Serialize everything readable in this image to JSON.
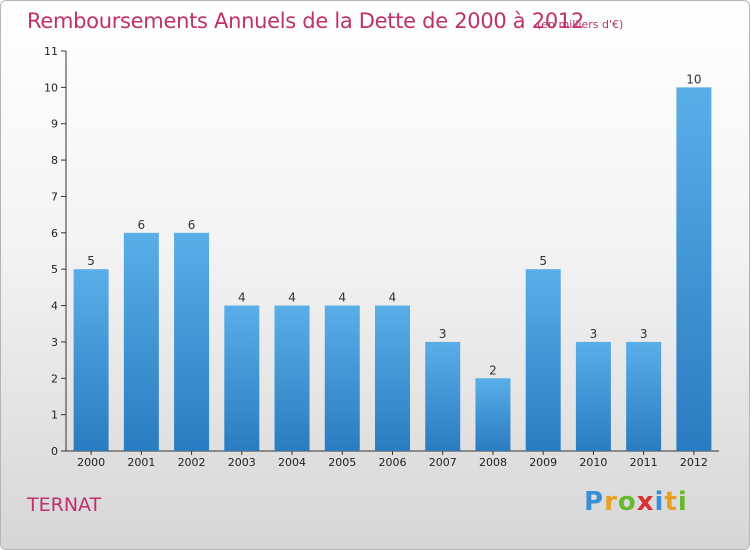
{
  "header": {
    "title": "Remboursements Annuels de la Dette de 2000 à 2012",
    "subtitle": "(en milliers d'€)"
  },
  "footer": {
    "commune": "TERNAT",
    "logo_letters": [
      "P",
      "r",
      "o",
      "x",
      "i",
      "t",
      "i"
    ],
    "logo_colors": [
      "#3a8fd4",
      "#e8a020",
      "#6ab82e",
      "#d93030",
      "#3a8fd4",
      "#e8a020",
      "#6ab82e"
    ]
  },
  "chart_data": {
    "type": "bar",
    "title": "Remboursements Annuels de la Dette de 2000 à 2012",
    "subtitle": "(en milliers d'€)",
    "categories": [
      "2000",
      "2001",
      "2002",
      "2003",
      "2004",
      "2005",
      "2006",
      "2007",
      "2008",
      "2009",
      "2010",
      "2011",
      "2012"
    ],
    "values": [
      5,
      6,
      6,
      4,
      4,
      4,
      4,
      3,
      2,
      5,
      3,
      3,
      10
    ],
    "data_labels": [
      "5",
      "6",
      "6",
      "4",
      "4",
      "4",
      "4",
      "3",
      "2",
      "5",
      "3",
      "3",
      "10"
    ],
    "yticks": [
      "0",
      "1",
      "2",
      "3",
      "4",
      "5",
      "6",
      "7",
      "8",
      "9",
      "10",
      "11"
    ],
    "ylim": [
      0,
      11
    ],
    "grid": false,
    "colors": {
      "bar_light": "#5aaee8",
      "bar_dark": "#2a7cc0",
      "axis": "#333333",
      "title": "#c0306a"
    }
  }
}
